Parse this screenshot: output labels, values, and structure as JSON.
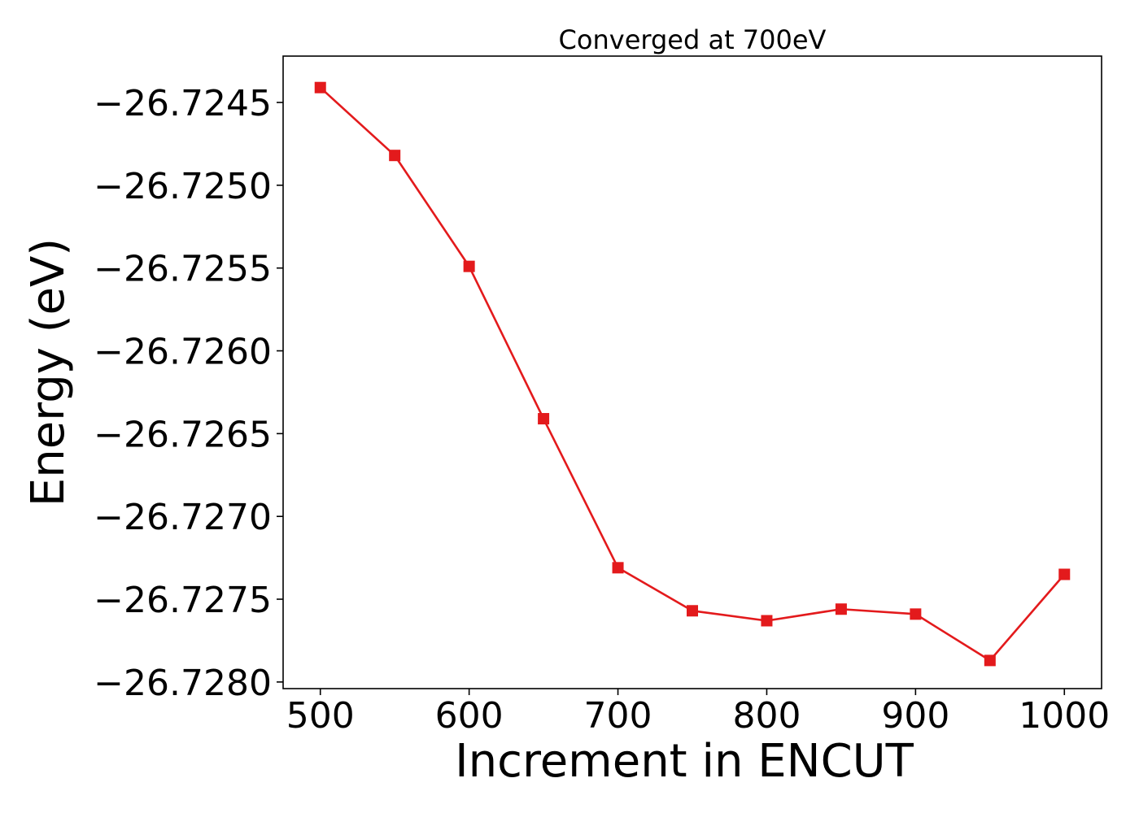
{
  "chart_data": {
    "type": "line",
    "title": "Converged at 700eV",
    "xlabel": "Increment in ENCUT",
    "ylabel": "Energy (eV)",
    "x": [
      500,
      550,
      600,
      650,
      700,
      750,
      800,
      850,
      900,
      950,
      1000
    ],
    "series": [
      {
        "values": [
          -26.72441,
          -26.72482,
          -26.72549,
          -26.72641,
          -26.72731,
          -26.72757,
          -26.72763,
          -26.72756,
          -26.72759,
          -26.72787,
          -26.72735
        ],
        "color": "#e31a1c",
        "marker": "square"
      }
    ],
    "xlim": [
      475,
      1025
    ],
    "ylim": [
      -26.72804,
      -26.72422
    ],
    "xticks": [
      500,
      600,
      700,
      800,
      900,
      1000
    ],
    "xtick_labels": [
      "500",
      "600",
      "700",
      "800",
      "900",
      "1000"
    ],
    "yticks": [
      -26.7245,
      -26.725,
      -26.7255,
      -26.726,
      -26.7265,
      -26.727,
      -26.7275,
      -26.728
    ],
    "ytick_labels": [
      "−26.7245",
      "−26.7250",
      "−26.7255",
      "−26.7260",
      "−26.7265",
      "−26.7270",
      "−26.7275",
      "−26.7280"
    ],
    "grid": false,
    "legend": "none"
  }
}
